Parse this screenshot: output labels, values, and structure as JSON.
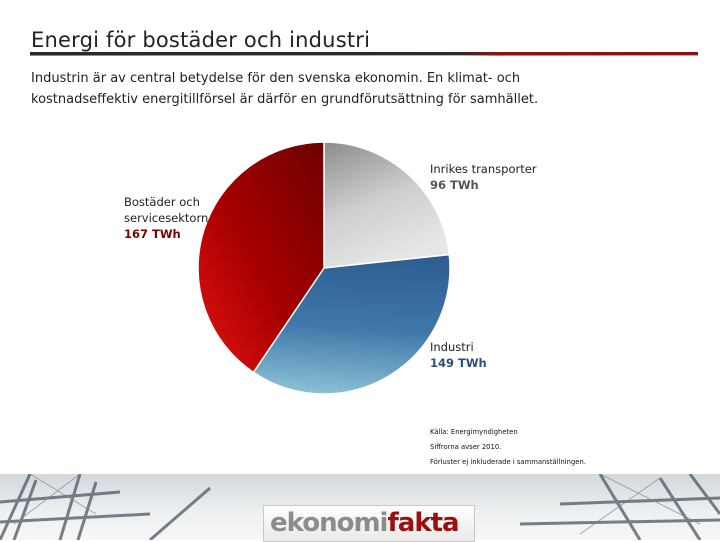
{
  "header": {
    "title": "Energi för bostäder och industri"
  },
  "description": {
    "line1": "Industrin är av central betydelse för den svenska ekonomin. En klimat- och",
    "line2": "kostnadseffektiv energitillförsel är därför en grundförutsättning för samhället."
  },
  "chart_data": {
    "type": "pie",
    "unit": "TWh",
    "slices": [
      {
        "label": "Inrikes transporter",
        "value": 96,
        "value_label": "96 TWh",
        "color": "#b7b7b7"
      },
      {
        "label": "Industri",
        "value": 149,
        "value_label": "149 TWh",
        "color": "#3c6a9c"
      },
      {
        "label": "Bostäder och servicesektorn",
        "label_lines": [
          "Bostäder och",
          "servicesektorn"
        ],
        "value": 167,
        "value_label": "167 TWh",
        "color": "#a00000"
      }
    ],
    "start_angle_deg": 0,
    "direction": "clockwise"
  },
  "notes": {
    "line1": "Källa: Energimyndigheten",
    "line2": "Siffrorna avser 2010.",
    "line3": "Förluster ej inkluderade i sammanställningen."
  },
  "footer": {
    "logo_part1": "ekonomi",
    "logo_part2": "fakta"
  }
}
